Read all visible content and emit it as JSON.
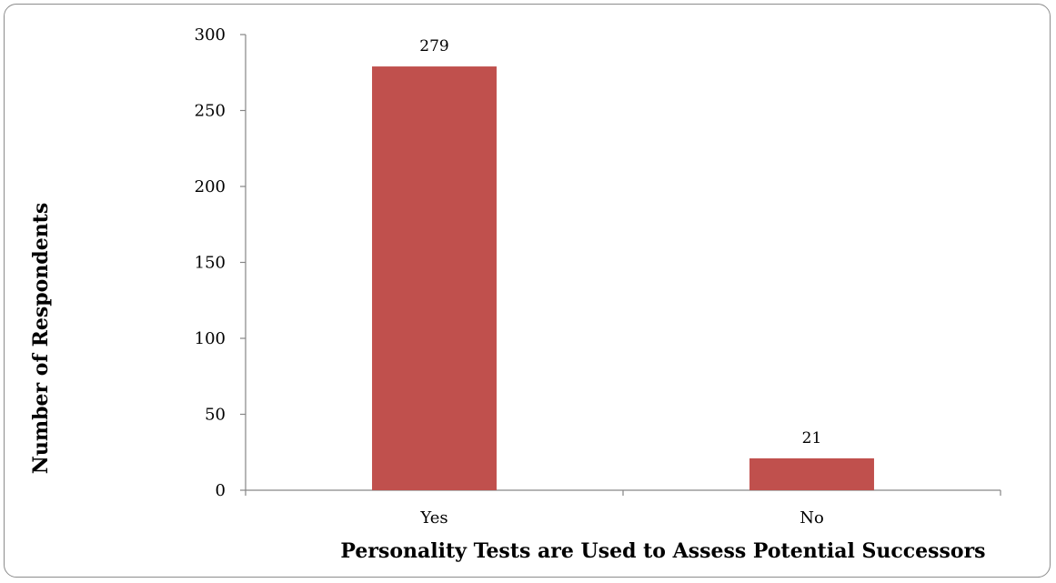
{
  "chart_data": {
    "type": "bar",
    "title": "",
    "xlabel": "Personality Tests are Used to Assess Potential Successors",
    "ylabel": "Number of Respondents",
    "categories": [
      "Yes",
      "No"
    ],
    "values": [
      279,
      21
    ],
    "data_labels": [
      "279",
      "21"
    ],
    "ylim": [
      0,
      300
    ],
    "yticks": [
      0,
      50,
      100,
      150,
      200,
      250,
      300
    ],
    "grid": false,
    "legend": "none",
    "bar_color": "#c0504d"
  }
}
